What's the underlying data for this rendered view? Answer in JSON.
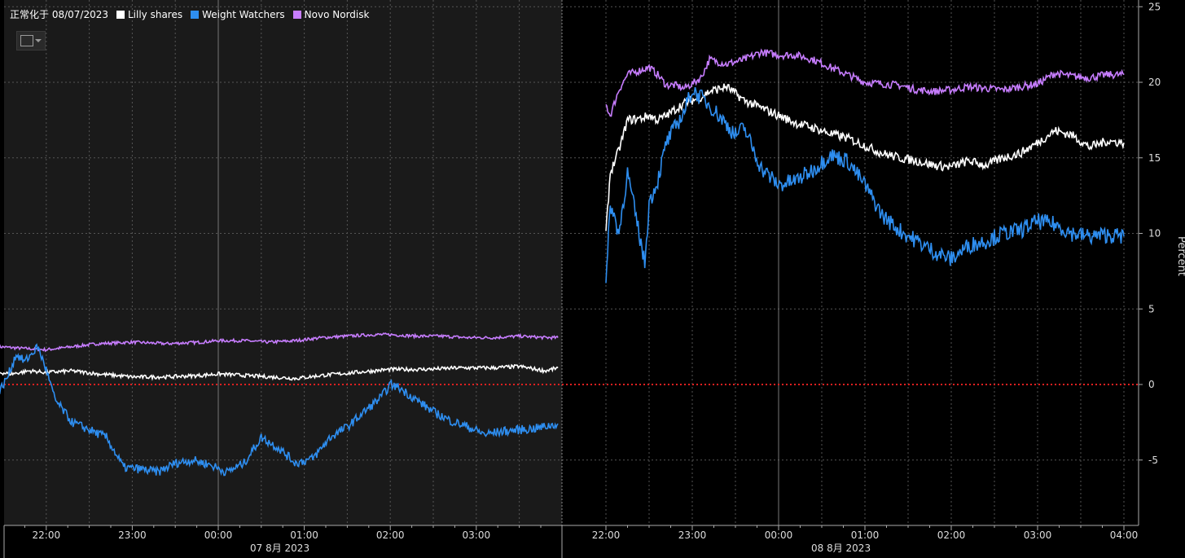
{
  "legend": {
    "prefix": "正常化于 08/07/2023",
    "items": [
      {
        "label": "Lilly shares",
        "color": "#ffffff"
      },
      {
        "label": "Weight Watchers",
        "color": "#2e8ef0"
      },
      {
        "label": "Novo Nordisk",
        "color": "#c77dff"
      }
    ]
  },
  "y_axis_title": "Percent",
  "date_labels": [
    "07 8月 2023",
    "08 8月 2023"
  ],
  "colors": {
    "background": "#000000",
    "shaded_session": "#1a1a1a",
    "zero_line": "#e02020",
    "grid": "#555555"
  },
  "chart_data": {
    "type": "line",
    "ylabel": "Percent",
    "ylim": [
      -9,
      25.5
    ],
    "yticks": [
      -5,
      0,
      5,
      10,
      15,
      20,
      25
    ],
    "x_unit": "hours",
    "xlim": [
      -2.55,
      4.2
    ],
    "session_break": 3.95,
    "sessions": [
      {
        "label": "07 8月 2023",
        "ticks": [
          {
            "label": "22:00",
            "x": -2
          },
          {
            "label": "23:00",
            "x": -1
          },
          {
            "label": "00:00",
            "x": 0
          },
          {
            "label": "01:00",
            "x": 1
          },
          {
            "label": "02:00",
            "x": 2
          },
          {
            "label": "03:00",
            "x": 3
          }
        ]
      },
      {
        "label": "08 8月 2023",
        "ticks": [
          {
            "label": "22:00",
            "x": -2
          },
          {
            "label": "23:00",
            "x": -1
          },
          {
            "label": "00:00",
            "x": 0
          },
          {
            "label": "01:00",
            "x": 1
          },
          {
            "label": "02:00",
            "x": 2
          },
          {
            "label": "03:00",
            "x": 3
          },
          {
            "label": "04:00",
            "x": 4
          }
        ]
      }
    ],
    "series": [
      {
        "name": "Lilly shares",
        "color": "#ffffff",
        "day1": {
          "x": [
            -2.55,
            -2.4,
            -2.2,
            -2.0,
            -1.7,
            -1.4,
            -1.0,
            -0.6,
            -0.2,
            0.0,
            0.3,
            0.6,
            0.9,
            1.2,
            1.6,
            2.0,
            2.4,
            2.8,
            3.2,
            3.5,
            3.8,
            3.95
          ],
          "y": [
            0.8,
            0.7,
            0.9,
            0.8,
            0.9,
            0.7,
            0.5,
            0.5,
            0.6,
            0.7,
            0.6,
            0.5,
            0.4,
            0.6,
            0.8,
            1.0,
            1.0,
            1.1,
            1.1,
            1.2,
            0.9,
            1.1
          ]
        },
        "day2": {
          "x": [
            -2.0,
            -1.95,
            -1.85,
            -1.75,
            -1.6,
            -1.5,
            -1.4,
            -1.3,
            -1.2,
            -1.1,
            -1.0,
            -0.9,
            -0.8,
            -0.6,
            -0.4,
            -0.2,
            0.0,
            0.2,
            0.4,
            0.6,
            0.8,
            1.0,
            1.2,
            1.4,
            1.6,
            1.8,
            2.0,
            2.2,
            2.4,
            2.6,
            2.8,
            3.0,
            3.2,
            3.4,
            3.6,
            3.8,
            4.0
          ],
          "y": [
            10,
            14,
            15.5,
            17.5,
            17.6,
            17.8,
            17.5,
            17.8,
            18.2,
            18.6,
            18.8,
            19.0,
            19.4,
            19.7,
            18.8,
            18.3,
            17.8,
            17.3,
            17.0,
            16.6,
            16.3,
            15.8,
            15.3,
            15.0,
            14.8,
            14.5,
            14.4,
            14.8,
            14.5,
            15.0,
            15.3,
            16.0,
            16.8,
            16.5,
            15.7,
            16.1,
            16.0
          ]
        }
      },
      {
        "name": "Weight Watchers",
        "color": "#2e8ef0",
        "day1": {
          "x": [
            -2.55,
            -2.45,
            -2.35,
            -2.25,
            -2.1,
            -2.0,
            -1.9,
            -1.7,
            -1.5,
            -1.3,
            -1.1,
            -0.9,
            -0.7,
            -0.5,
            -0.3,
            -0.1,
            0.1,
            0.3,
            0.5,
            0.7,
            0.9,
            1.1,
            1.3,
            1.5,
            1.7,
            1.9,
            2.0,
            2.1,
            2.3,
            2.5,
            2.7,
            2.9,
            3.1,
            3.3,
            3.5,
            3.7,
            3.95
          ],
          "y": [
            -0.5,
            0.5,
            2.0,
            1.5,
            2.5,
            1.0,
            -1.0,
            -2.5,
            -3.0,
            -3.5,
            -5.5,
            -5.6,
            -5.8,
            -5.2,
            -5.0,
            -5.3,
            -5.8,
            -5.2,
            -3.5,
            -4.2,
            -5.2,
            -4.9,
            -3.5,
            -2.8,
            -1.8,
            -0.8,
            0.0,
            -0.2,
            -1.0,
            -1.8,
            -2.4,
            -2.8,
            -3.3,
            -3.1,
            -3.0,
            -2.9,
            -2.6
          ]
        },
        "day2": {
          "x": [
            -2.0,
            -1.95,
            -1.85,
            -1.75,
            -1.65,
            -1.55,
            -1.5,
            -1.4,
            -1.3,
            -1.2,
            -1.1,
            -1.0,
            -0.9,
            -0.8,
            -0.6,
            -0.5,
            -0.4,
            -0.2,
            0.0,
            0.2,
            0.4,
            0.6,
            0.8,
            1.0,
            1.2,
            1.4,
            1.6,
            1.8,
            2.0,
            2.2,
            2.4,
            2.6,
            2.8,
            3.0,
            3.2,
            3.4,
            3.6,
            3.8,
            4.0
          ],
          "y": [
            6.5,
            12,
            10,
            14,
            11,
            8,
            12,
            13.5,
            16,
            17,
            18,
            19.5,
            19.0,
            18.5,
            17.2,
            16.5,
            17.0,
            14.3,
            13.2,
            13.5,
            14.2,
            15.2,
            14.8,
            13.2,
            11.2,
            10.2,
            9.5,
            8.8,
            8.3,
            9.2,
            9.5,
            10.0,
            10.2,
            10.8,
            10.6,
            10.0,
            9.8,
            9.9,
            9.8
          ]
        }
      },
      {
        "name": "Novo Nordisk",
        "color": "#c77dff",
        "day1": {
          "x": [
            -2.55,
            -2.3,
            -2.0,
            -1.7,
            -1.4,
            -1.0,
            -0.6,
            -0.2,
            0.0,
            0.3,
            0.6,
            0.9,
            1.2,
            1.5,
            1.8,
            2.0,
            2.3,
            2.6,
            2.9,
            3.2,
            3.5,
            3.8,
            3.95
          ],
          "y": [
            2.5,
            2.4,
            2.3,
            2.5,
            2.7,
            2.8,
            2.7,
            2.8,
            2.9,
            2.9,
            2.8,
            2.9,
            3.1,
            3.2,
            3.3,
            3.3,
            3.2,
            3.2,
            3.1,
            3.1,
            3.2,
            3.1,
            3.1
          ]
        },
        "day2": {
          "x": [
            -2.0,
            -1.95,
            -1.85,
            -1.75,
            -1.6,
            -1.5,
            -1.4,
            -1.3,
            -1.2,
            -1.1,
            -1.0,
            -0.9,
            -0.8,
            -0.6,
            -0.4,
            -0.2,
            0.0,
            0.2,
            0.4,
            0.6,
            0.8,
            1.0,
            1.2,
            1.4,
            1.6,
            1.8,
            2.0,
            2.2,
            2.4,
            2.6,
            2.8,
            3.0,
            3.2,
            3.4,
            3.6,
            3.8,
            4.0
          ],
          "y": [
            18.5,
            17.8,
            19.5,
            20.5,
            20.8,
            21.0,
            20.5,
            19.8,
            19.8,
            19.6,
            19.9,
            20.3,
            21.5,
            21.2,
            21.5,
            22.0,
            21.8,
            21.8,
            21.5,
            21.0,
            20.5,
            20.0,
            19.9,
            19.8,
            19.5,
            19.4,
            19.5,
            19.7,
            19.6,
            19.5,
            19.7,
            19.9,
            20.6,
            20.4,
            20.3,
            20.5,
            20.5
          ]
        }
      }
    ]
  }
}
